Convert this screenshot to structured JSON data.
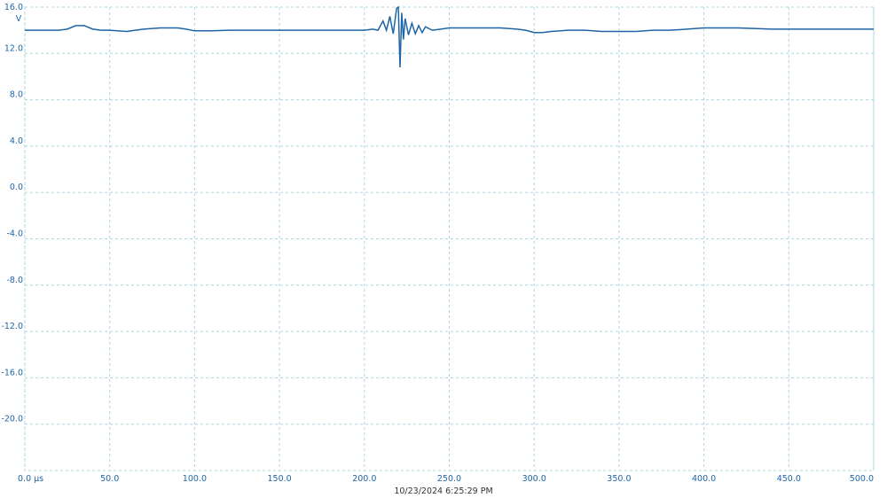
{
  "chart_data": {
    "type": "line",
    "y_unit": "V",
    "x_label": "10/23/2024 6:25:29 PM",
    "x": [
      0,
      10,
      20,
      25,
      30,
      35,
      40,
      45,
      50,
      60,
      65,
      70,
      80,
      90,
      95,
      100,
      110,
      120,
      130,
      135,
      140,
      150,
      160,
      170,
      180,
      190,
      200,
      205,
      208,
      211,
      213,
      215,
      217,
      219,
      220,
      221,
      222,
      223,
      224,
      226,
      228,
      230,
      232,
      234,
      236,
      240,
      245,
      250,
      260,
      270,
      280,
      290,
      295,
      300,
      305,
      310,
      320,
      330,
      340,
      350,
      360,
      370,
      380,
      390,
      400,
      420,
      440,
      460,
      480,
      500
    ],
    "series": [
      {
        "color": "#1f65a5",
        "values": [
          14.0,
          14.0,
          14.0,
          14.1,
          14.4,
          14.4,
          14.1,
          14.0,
          14.0,
          13.9,
          14.0,
          14.1,
          14.2,
          14.2,
          14.1,
          13.95,
          13.95,
          14.0,
          14.0,
          14.0,
          14.0,
          14.0,
          14.0,
          14.0,
          14.0,
          14.0,
          14.0,
          14.1,
          14.0,
          14.8,
          14.0,
          15.2,
          13.7,
          15.9,
          16.0,
          10.8,
          15.5,
          13.2,
          15.0,
          13.6,
          14.6,
          13.7,
          14.4,
          13.8,
          14.3,
          14.0,
          14.1,
          14.2,
          14.2,
          14.2,
          14.2,
          14.1,
          14.0,
          13.8,
          13.8,
          13.9,
          14.0,
          14.0,
          13.9,
          13.9,
          13.9,
          14.0,
          14.0,
          14.1,
          14.2,
          14.2,
          14.1,
          14.1,
          14.1,
          14.1
        ]
      }
    ],
    "xlim": [
      0,
      500
    ],
    "ylim": [
      -24,
      16
    ],
    "xticks": [
      {
        "value": 0,
        "label": "0.0 µs"
      },
      {
        "value": 50,
        "label": "50.0"
      },
      {
        "value": 100,
        "label": "100.0"
      },
      {
        "value": 150,
        "label": "150.0"
      },
      {
        "value": 200,
        "label": "200.0"
      },
      {
        "value": 250,
        "label": "250.0"
      },
      {
        "value": 300,
        "label": "300.0"
      },
      {
        "value": 350,
        "label": "350.0"
      },
      {
        "value": 400,
        "label": "400.0"
      },
      {
        "value": 450,
        "label": "450.0"
      },
      {
        "value": 500,
        "label": "500.0"
      }
    ],
    "yticks": [
      {
        "value": 16,
        "label": "16.0"
      },
      {
        "value": 12,
        "label": "12.0"
      },
      {
        "value": 8,
        "label": "8.0"
      },
      {
        "value": 4,
        "label": "4.0"
      },
      {
        "value": 0,
        "label": "0.0"
      },
      {
        "value": -4,
        "label": "-4.0"
      },
      {
        "value": -8,
        "label": "-8.0"
      },
      {
        "value": -12,
        "label": "-12.0"
      },
      {
        "value": -16,
        "label": "-16.0"
      },
      {
        "value": -20,
        "label": "-20.0"
      }
    ],
    "grid": true
  }
}
